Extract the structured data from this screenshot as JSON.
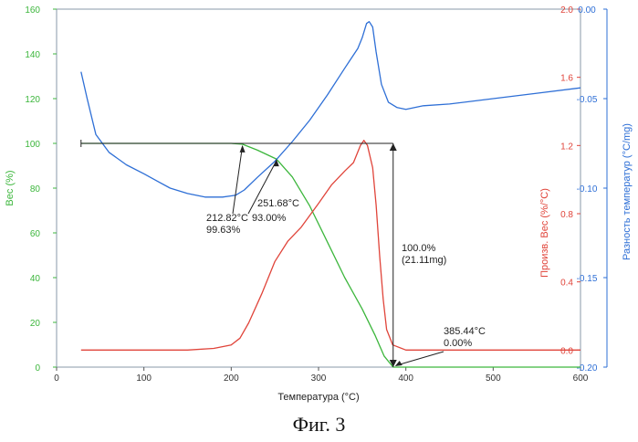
{
  "chart_data": {
    "type": "line",
    "title": "",
    "xlabel": "Температура (°C)",
    "xlim": [
      0,
      600
    ],
    "x_ticks": [
      "0",
      "100",
      "200",
      "300",
      "400",
      "500",
      "600"
    ],
    "axes": {
      "left": {
        "label": "Вес (%)",
        "range": [
          0,
          160
        ],
        "ticks": [
          "0",
          "20",
          "40",
          "60",
          "80",
          "100",
          "120",
          "140",
          "160"
        ],
        "color": "#3cb63c"
      },
      "inner_right": {
        "label": "Произв. Вес (%/°C)",
        "range": [
          -0.1,
          2.0
        ],
        "ticks": [
          "0.0",
          "0.4",
          "0.8",
          "1.2",
          "1.6",
          "2.0"
        ],
        "color": "#e0443a"
      },
      "outer_right": {
        "label": "Разность температур (°C/mg)",
        "range": [
          -0.2,
          0.0
        ],
        "ticks": [
          "0.00",
          "-0.05",
          "-0.10",
          "-0.15",
          "-0.20"
        ],
        "color": "#2e6fd6"
      }
    },
    "grid": false,
    "series": [
      {
        "axis": "left",
        "color": "#3cb63c",
        "x": [
          28,
          100,
          200,
          212.82,
          230,
          251.68,
          270,
          290,
          310,
          330,
          350,
          365,
          375,
          385.44,
          395,
          420,
          500,
          600
        ],
        "values": [
          100,
          100,
          100,
          99.63,
          97,
          93,
          85,
          72,
          56,
          40,
          26,
          14,
          5,
          0,
          0,
          0,
          0,
          0
        ]
      },
      {
        "axis": "inner_right",
        "color": "#e0443a",
        "x": [
          28,
          100,
          150,
          180,
          200,
          210,
          220,
          235,
          250,
          265,
          280,
          300,
          315,
          330,
          340,
          348,
          352,
          356,
          362,
          366,
          370,
          374,
          378,
          385,
          400,
          500,
          600
        ],
        "values": [
          0.0,
          0.0,
          0.0,
          0.01,
          0.03,
          0.07,
          0.16,
          0.33,
          0.52,
          0.64,
          0.72,
          0.86,
          0.97,
          1.05,
          1.1,
          1.2,
          1.23,
          1.2,
          1.07,
          0.85,
          0.55,
          0.3,
          0.12,
          0.03,
          0.0,
          0.0,
          0.0
        ]
      },
      {
        "axis": "outer_right",
        "color": "#2e6fd6",
        "x": [
          28,
          35,
          45,
          60,
          80,
          100,
          115,
          130,
          150,
          170,
          190,
          205,
          215,
          230,
          250,
          270,
          290,
          310,
          330,
          345,
          350,
          355,
          358,
          362,
          366,
          372,
          380,
          390,
          400,
          420,
          450,
          500,
          550,
          600
        ],
        "values": [
          -0.035,
          -0.05,
          -0.07,
          -0.08,
          -0.087,
          -0.092,
          -0.096,
          -0.1,
          -0.103,
          -0.105,
          -0.105,
          -0.104,
          -0.101,
          -0.094,
          -0.085,
          -0.074,
          -0.062,
          -0.048,
          -0.033,
          -0.022,
          -0.016,
          -0.008,
          -0.007,
          -0.01,
          -0.024,
          -0.042,
          -0.052,
          -0.055,
          -0.056,
          -0.054,
          -0.053,
          -0.05,
          -0.047,
          -0.044
        ]
      }
    ],
    "annotations": [
      {
        "lines": [
          "212.82°C",
          "99.63%"
        ],
        "x": 212.82,
        "y": 99.63
      },
      {
        "lines": [
          "93.00%"
        ],
        "x": 251.68,
        "y": 93
      },
      {
        "lines": [
          "251.68°C"
        ],
        "x": 251.68,
        "y": 93
      },
      {
        "lines": [
          "100.0%",
          "(21.11mg)"
        ],
        "x": 385.44,
        "y": 50
      },
      {
        "lines": [
          "385.44°C",
          "0.00%"
        ],
        "x": 385.44,
        "y": 0
      }
    ]
  },
  "caption": "Фиг. 3"
}
